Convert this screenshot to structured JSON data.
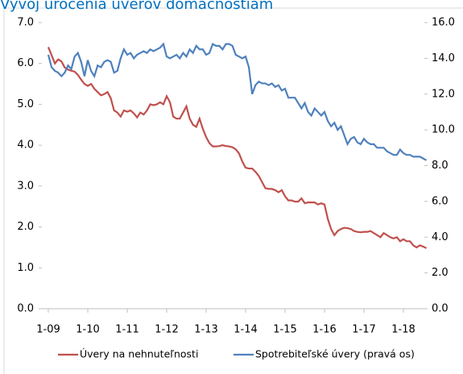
{
  "chart_data": {
    "type": "line",
    "title": "Vývoj úročenia úverov domácnostiam",
    "categories": [
      "1-09",
      null,
      null,
      null,
      null,
      null,
      null,
      null,
      null,
      null,
      null,
      null,
      "1-10",
      null,
      null,
      null,
      null,
      null,
      null,
      null,
      null,
      null,
      null,
      null,
      "1-11",
      null,
      null,
      null,
      null,
      null,
      null,
      null,
      null,
      null,
      null,
      null,
      "1-12",
      null,
      null,
      null,
      null,
      null,
      null,
      null,
      null,
      null,
      null,
      null,
      "1-13",
      null,
      null,
      null,
      null,
      null,
      null,
      null,
      null,
      null,
      null,
      null,
      "1-14",
      null,
      null,
      null,
      null,
      null,
      null,
      null,
      null,
      null,
      null,
      null,
      "1-15",
      null,
      null,
      null,
      null,
      null,
      null,
      null,
      null,
      null,
      null,
      null,
      "1-16",
      null,
      null,
      null,
      null,
      null,
      null,
      null,
      null,
      null,
      null,
      null,
      "1-17",
      null,
      null,
      null,
      null,
      null,
      null,
      null,
      null,
      null,
      null,
      null,
      "1-18",
      null,
      null,
      null,
      null,
      null,
      null,
      null
    ],
    "series": [
      {
        "name": "Úvery na nehnuteľnosti",
        "color": "#c0504d",
        "axis": "y",
        "values": [
          6.4,
          6.2,
          6.0,
          6.1,
          6.05,
          5.9,
          5.85,
          5.82,
          5.8,
          5.72,
          5.6,
          5.5,
          5.45,
          5.5,
          5.38,
          5.3,
          5.22,
          5.25,
          5.3,
          5.15,
          4.85,
          4.8,
          4.7,
          4.85,
          4.82,
          4.85,
          4.78,
          4.68,
          4.8,
          4.75,
          4.85,
          5.0,
          4.98,
          5.0,
          5.05,
          5.0,
          5.2,
          5.05,
          4.7,
          4.65,
          4.65,
          4.8,
          4.95,
          4.65,
          4.5,
          4.45,
          4.65,
          4.4,
          4.2,
          4.05,
          3.97,
          3.97,
          3.98,
          4.0,
          3.98,
          3.97,
          3.95,
          3.9,
          3.8,
          3.6,
          3.45,
          3.43,
          3.43,
          3.35,
          3.25,
          3.1,
          2.95,
          2.93,
          2.93,
          2.9,
          2.85,
          2.9,
          2.75,
          2.65,
          2.65,
          2.62,
          2.62,
          2.7,
          2.58,
          2.6,
          2.6,
          2.6,
          2.55,
          2.58,
          2.55,
          2.2,
          1.95,
          1.8,
          1.9,
          1.95,
          1.98,
          1.97,
          1.95,
          1.9,
          1.88,
          1.87,
          1.88,
          1.88,
          1.9,
          1.85,
          1.8,
          1.75,
          1.85,
          1.8,
          1.75,
          1.72,
          1.75,
          1.65,
          1.7,
          1.65,
          1.65,
          1.55,
          1.5,
          1.55,
          1.52,
          1.48
        ]
      },
      {
        "name": "Spotrebiteľské úvery (pravá os)",
        "color": "#4f81bd",
        "axis": "y2",
        "values": [
          14.2,
          13.5,
          13.3,
          13.2,
          13.0,
          13.2,
          13.6,
          13.4,
          14.1,
          14.3,
          13.8,
          13.0,
          13.9,
          13.3,
          13.0,
          13.6,
          13.5,
          13.8,
          13.9,
          13.8,
          13.2,
          13.3,
          14.0,
          14.5,
          14.2,
          14.3,
          14.0,
          14.2,
          14.3,
          14.4,
          14.3,
          14.5,
          14.4,
          14.5,
          14.6,
          14.8,
          14.1,
          14.0,
          14.1,
          14.2,
          14.0,
          14.3,
          14.1,
          14.5,
          14.3,
          14.7,
          14.5,
          14.5,
          14.2,
          14.3,
          14.8,
          14.7,
          14.7,
          14.5,
          14.8,
          14.8,
          14.7,
          14.2,
          14.1,
          14.0,
          14.1,
          13.5,
          12.0,
          12.5,
          12.7,
          12.6,
          12.6,
          12.5,
          12.6,
          12.4,
          12.5,
          12.2,
          12.3,
          11.8,
          11.8,
          11.8,
          11.5,
          11.2,
          11.5,
          11.0,
          10.8,
          11.2,
          11.0,
          10.8,
          11.0,
          10.5,
          10.2,
          10.4,
          10.0,
          10.2,
          9.7,
          9.2,
          9.5,
          9.6,
          9.3,
          9.2,
          9.5,
          9.3,
          9.2,
          9.2,
          9.0,
          9.0,
          9.0,
          8.8,
          8.7,
          8.6,
          8.6,
          8.9,
          8.7,
          8.6,
          8.6,
          8.5,
          8.5,
          8.5,
          8.4,
          8.3
        ]
      }
    ],
    "ylim": [
      0,
      7
    ],
    "yticks": [
      {
        "value": 0,
        "label": "0.0"
      },
      {
        "value": 1,
        "label": "1.0"
      },
      {
        "value": 2,
        "label": "2.0"
      },
      {
        "value": 3,
        "label": "3.0"
      },
      {
        "value": 4,
        "label": "4.0"
      },
      {
        "value": 5,
        "label": "5.0"
      },
      {
        "value": 6,
        "label": "6.0"
      },
      {
        "value": 7,
        "label": "7.0"
      }
    ],
    "y2lim": [
      0,
      16
    ],
    "y2ticks": [
      {
        "value": 0,
        "label": "0.0"
      },
      {
        "value": 2,
        "label": "2.0"
      },
      {
        "value": 4,
        "label": "4.0"
      },
      {
        "value": 6,
        "label": "6.0"
      },
      {
        "value": 8,
        "label": "8.0"
      },
      {
        "value": 10,
        "label": "10.0"
      },
      {
        "value": 12,
        "label": "12.0"
      },
      {
        "value": 14,
        "label": "14.0"
      },
      {
        "value": 16,
        "label": "16.0"
      }
    ],
    "legend": "bottom"
  }
}
